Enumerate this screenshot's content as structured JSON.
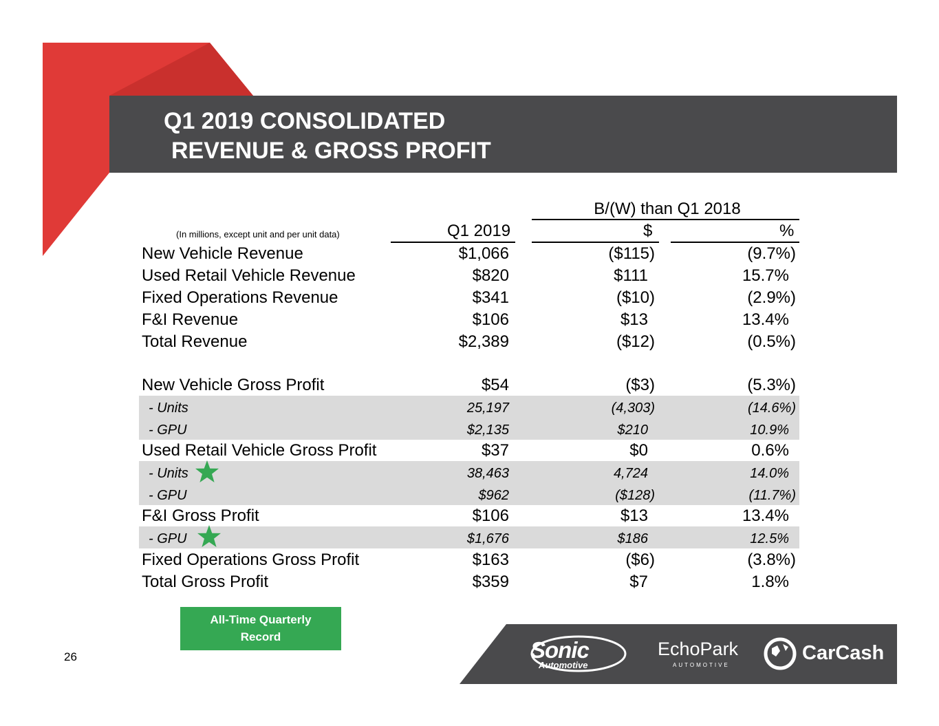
{
  "colors": {
    "accent_red": "#e03a37",
    "title_bar": "#4a4a4c",
    "band": "#dadada",
    "badge_green": "#35a853",
    "logo_bar": "#4a4a4c"
  },
  "title": {
    "line1": "Q1 2019 CONSOLIDATED",
    "line2": "REVENUE & GROSS PROFIT"
  },
  "table": {
    "note": "(In millions, except unit and per unit data)",
    "group_header": "B/(W) than Q1 2018",
    "col1": "Q1 2019",
    "col2": "$",
    "col3": "%",
    "rows": [
      {
        "label": "New Vehicle Revenue",
        "q1": "$1,066",
        "dollar": "($115)",
        "pct": "(9.7%)"
      },
      {
        "label": "Used Retail Vehicle Revenue",
        "q1": "$820",
        "dollar": "$111",
        "pct": "15.7%"
      },
      {
        "label": "Fixed Operations Revenue",
        "q1": "$341",
        "dollar": "($10)",
        "pct": "(2.9%)"
      },
      {
        "label": "F&I Revenue",
        "q1": "$106",
        "dollar": "$13",
        "pct": "13.4%"
      },
      {
        "label": "Total Revenue",
        "q1": "$2,389",
        "dollar": "($12)",
        "pct": "(0.5%)"
      },
      {
        "label": "New Vehicle Gross Profit",
        "q1": "$54",
        "dollar": "($3)",
        "pct": "(5.3%)"
      },
      {
        "label": "- Units",
        "q1": "25,197",
        "dollar": "(4,303)",
        "pct": "(14.6%)"
      },
      {
        "label": "- GPU",
        "q1": "$2,135",
        "dollar": "$210",
        "pct": "10.9%"
      },
      {
        "label": "Used Retail Vehicle Gross Profit",
        "q1": "$37",
        "dollar": "$0",
        "pct": "0.6%"
      },
      {
        "label": "- Units",
        "q1": "38,463",
        "dollar": "4,724",
        "pct": "14.0%"
      },
      {
        "label": "- GPU",
        "q1": "$962",
        "dollar": "($128)",
        "pct": "(11.7%)"
      },
      {
        "label": "F&I Gross Profit",
        "q1": "$106",
        "dollar": "$13",
        "pct": "13.4%"
      },
      {
        "label": "- GPU",
        "q1": "$1,676",
        "dollar": "$186",
        "pct": "12.5%"
      },
      {
        "label": "Fixed Operations Gross Profit",
        "q1": "$163",
        "dollar": "($6)",
        "pct": "(3.8%)"
      },
      {
        "label": "Total Gross Profit",
        "q1": "$359",
        "dollar": "$7",
        "pct": "1.8%"
      }
    ]
  },
  "badge": {
    "line1": "All-Time Quarterly",
    "line2": "Record"
  },
  "page_number": "26",
  "logos": {
    "sonic": "Sonic",
    "sonic_sub": "Automotive",
    "echopark": "EchoPark",
    "echopark_sub": "AUTOMOTIVE",
    "carcash": "CarCash"
  }
}
